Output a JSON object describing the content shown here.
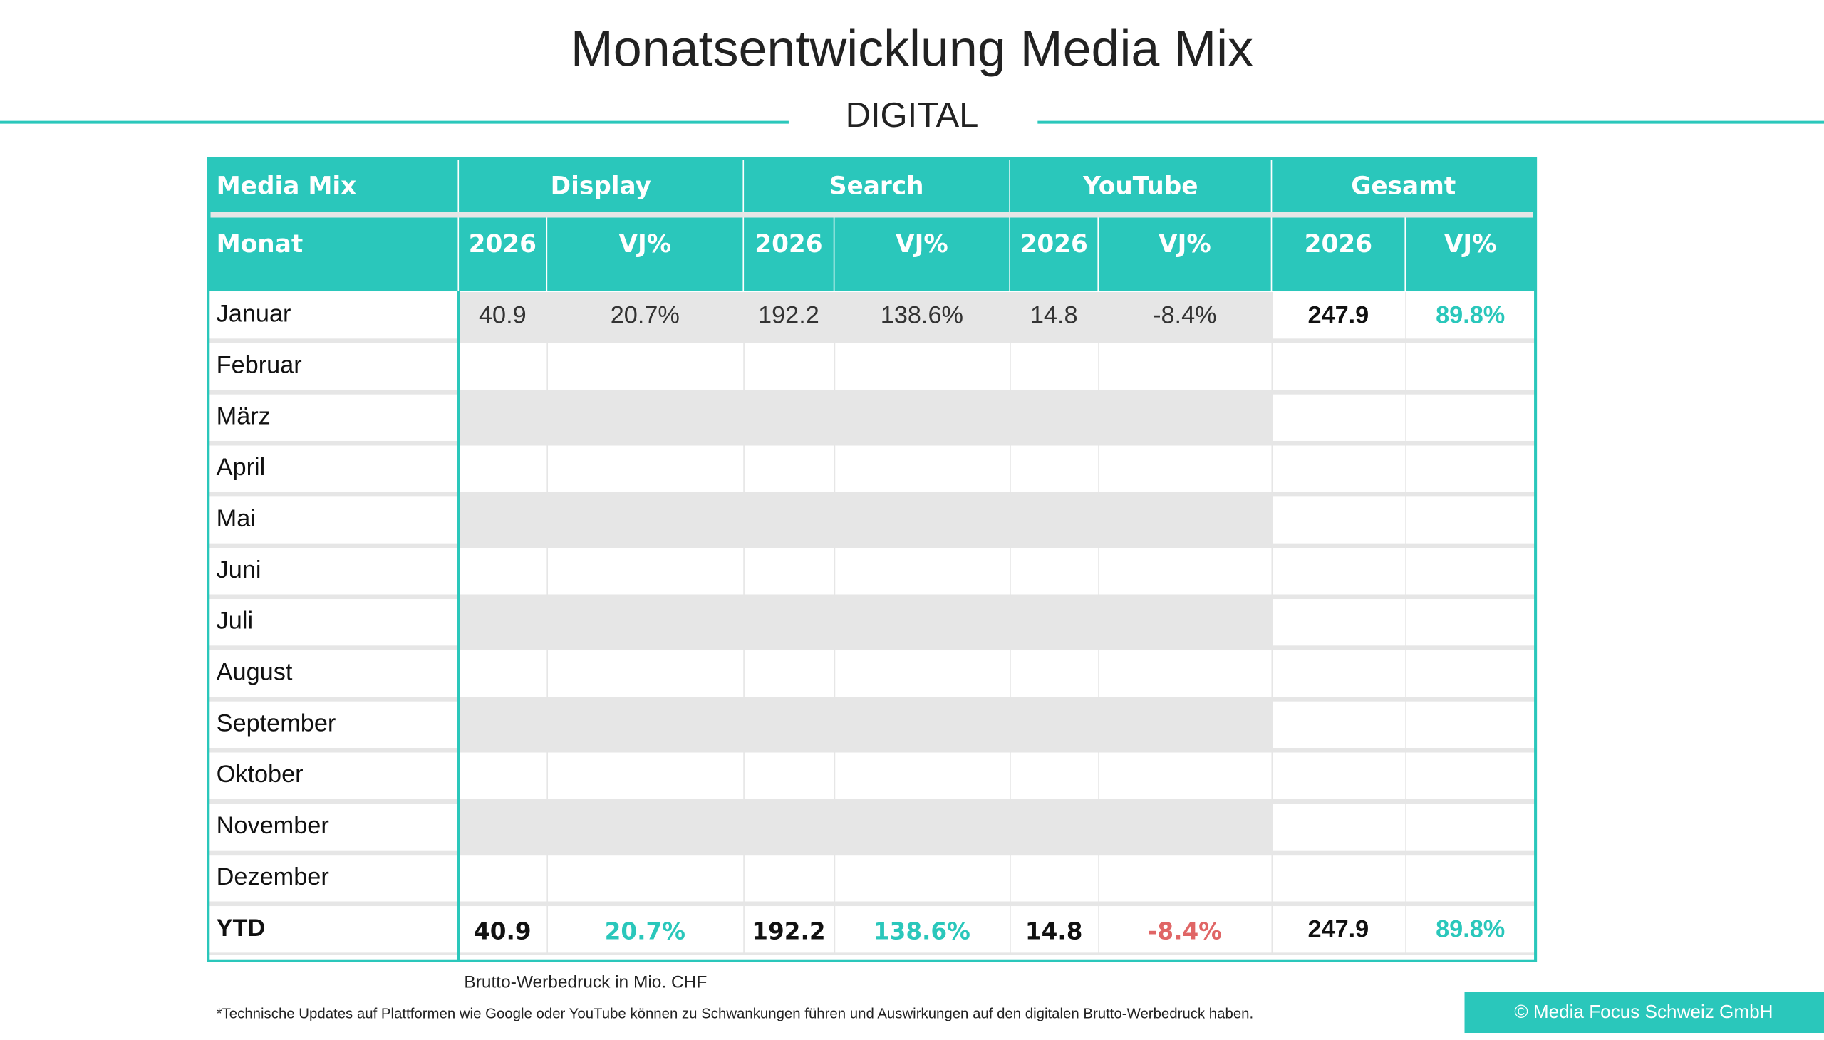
{
  "header": {
    "title": "Monatsentwicklung Media Mix",
    "subtitle": "DIGITAL"
  },
  "table": {
    "header_row1": [
      "Media Mix",
      "Display",
      "Search",
      "YouTube",
      "Gesamt"
    ],
    "header_row2": [
      "Monat",
      "2026",
      "VJ%",
      "2026",
      "VJ%",
      "2026",
      "VJ%",
      "2026",
      "VJ%"
    ],
    "rows": [
      {
        "label": "Januar",
        "cells": [
          "40.9",
          "20.7%",
          "192.2",
          "138.6%",
          "14.8",
          "-8.4%",
          "247.9",
          "89.8%"
        ]
      },
      {
        "label": "Februar"
      },
      {
        "label": "März"
      },
      {
        "label": "April"
      },
      {
        "label": "Mai"
      },
      {
        "label": "Juni"
      },
      {
        "label": "Juli"
      },
      {
        "label": "August"
      },
      {
        "label": "September"
      },
      {
        "label": "Oktober"
      },
      {
        "label": "November"
      },
      {
        "label": "Dezember"
      }
    ],
    "ytd": {
      "label": "YTD",
      "cells": [
        "40.9",
        "20.7%",
        "192.2",
        "138.6%",
        "14.8",
        "-8.4%",
        "247.9",
        "89.8%"
      ]
    }
  },
  "footer": {
    "unit_note": "Brutto-Werbedruck in Mio. CHF",
    "disclaimer": "*Technische Updates auf Plattformen wie Google oder YouTube können zu Schwankungen führen und Auswirkungen auf den digitalen Brutto-Werbedruck haben.",
    "copyright": "© Media Focus Schweiz GmbH"
  }
}
